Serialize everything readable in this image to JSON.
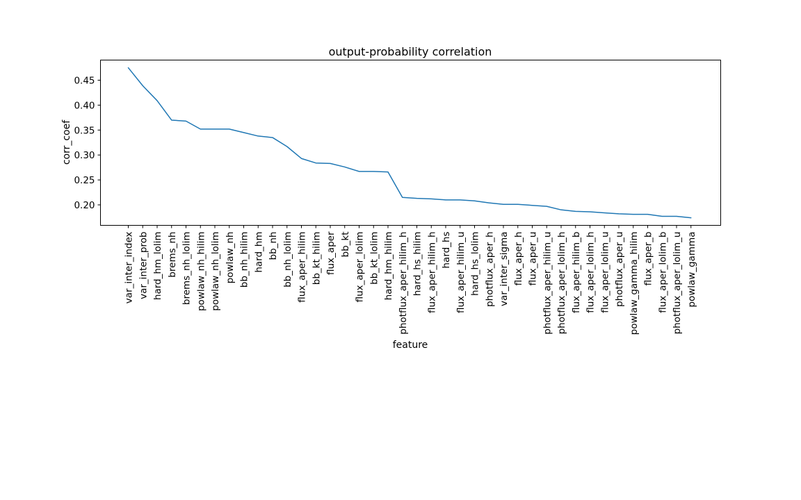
{
  "chart_data": {
    "type": "line",
    "title": "output-probability correlation",
    "xlabel": "feature",
    "ylabel": "corr_coef",
    "ylim": [
      0.17,
      0.48
    ],
    "yticks": [
      0.2,
      0.25,
      0.3,
      0.35,
      0.4,
      0.45
    ],
    "ytick_labels": [
      "0.20",
      "0.25",
      "0.30",
      "0.35",
      "0.40",
      "0.45"
    ],
    "grid": false,
    "line_color": "#1f77b4",
    "categories": [
      "var_inter_index",
      "var_inter_prob",
      "hard_hm_lolim",
      "brems_nh",
      "brems_nh_lolim",
      "powlaw_nh_hilim",
      "powlaw_nh_lolim",
      "powlaw_nh",
      "bb_nh_hilim",
      "hard_hm",
      "bb_nh",
      "bb_nh_lolim",
      "flux_aper_hilim",
      "bb_kt_hilim",
      "flux_aper",
      "bb_kt",
      "flux_aper_lolim",
      "bb_kt_lolim",
      "hard_hm_hilim",
      "photflux_aper_hilim_h",
      "hard_hs_hilim",
      "flux_aper_hilim_h",
      "hard_hs",
      "flux_aper_hilim_u",
      "hard_hs_lolim",
      "photflux_aper_h",
      "var_inter_sigma",
      "flux_aper_h",
      "flux_aper_u",
      "photflux_aper_hilim_u",
      "photflux_aper_lolim_h",
      "flux_aper_hilim_b",
      "flux_aper_lolim_h",
      "flux_aper_lolim_u",
      "photflux_aper_u",
      "powlaw_gamma_hilim",
      "flux_aper_b",
      "flux_aper_lolim_b",
      "photflux_aper_lolim_u",
      "powlaw_gamma"
    ],
    "values": [
      0.475,
      0.439,
      0.409,
      0.37,
      0.368,
      0.352,
      0.352,
      0.352,
      0.345,
      0.338,
      0.335,
      0.317,
      0.293,
      0.284,
      0.283,
      0.276,
      0.267,
      0.267,
      0.266,
      0.215,
      0.213,
      0.212,
      0.21,
      0.21,
      0.208,
      0.204,
      0.201,
      0.201,
      0.199,
      0.197,
      0.19,
      0.187,
      0.186,
      0.184,
      0.182,
      0.181,
      0.181,
      0.177,
      0.177,
      0.174
    ]
  }
}
